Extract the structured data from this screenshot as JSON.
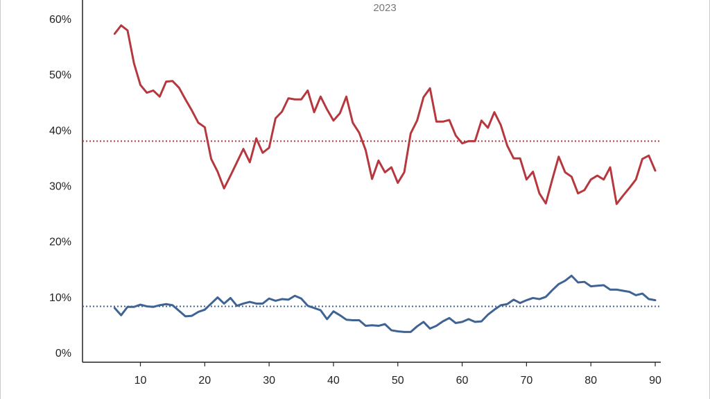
{
  "chart_data": {
    "type": "line",
    "subtitle": "2023",
    "x_ticks": [
      10,
      20,
      30,
      40,
      50,
      60,
      70,
      80,
      90
    ],
    "y_ticks": [
      "0%",
      "10%",
      "20%",
      "30%",
      "40%",
      "50%",
      "60%"
    ],
    "xlim": [
      0,
      91
    ],
    "ylim": [
      0,
      60
    ],
    "x": [
      6,
      7,
      8,
      9,
      10,
      11,
      12,
      13,
      14,
      15,
      16,
      17,
      18,
      19,
      20,
      21,
      22,
      23,
      24,
      25,
      26,
      27,
      28,
      29,
      30,
      31,
      32,
      33,
      34,
      35,
      36,
      37,
      38,
      39,
      40,
      41,
      42,
      43,
      44,
      45,
      46,
      47,
      48,
      49,
      50,
      51,
      52,
      53,
      54,
      55,
      56,
      57,
      58,
      59,
      60,
      61,
      62,
      63,
      64,
      65,
      66,
      67,
      68,
      69,
      70,
      71,
      72,
      73,
      74,
      75,
      76,
      77,
      78,
      79,
      80,
      81,
      82,
      83,
      84,
      85,
      86,
      87,
      88,
      89,
      90
    ],
    "series": [
      {
        "color": "#b5383e",
        "values": [
          57.3,
          58.8,
          57.9,
          52.0,
          48.1,
          46.7,
          47.1,
          46.0,
          48.7,
          48.8,
          47.6,
          45.5,
          43.5,
          41.3,
          40.5,
          34.8,
          32.5,
          29.5,
          31.8,
          34.2,
          36.6,
          34.2,
          38.5,
          35.9,
          36.8,
          42.1,
          43.3,
          45.7,
          45.5,
          45.5,
          47.1,
          43.2,
          46.0,
          43.7,
          41.7,
          43.0,
          46.0,
          41.3,
          39.5,
          36.4,
          31.2,
          34.5,
          32.4,
          33.3,
          30.5,
          32.4,
          39.4,
          41.7,
          45.9,
          47.5,
          41.5,
          41.5,
          41.8,
          39.0,
          37.6,
          38.0,
          38.0,
          41.7,
          40.4,
          43.2,
          40.9,
          37.2,
          34.9,
          34.9,
          31.1,
          32.5,
          28.6,
          26.8,
          31.1,
          35.2,
          32.4,
          31.6,
          28.6,
          29.2,
          31.1,
          31.8,
          31.1,
          33.3,
          26.7,
          28.2,
          29.6,
          31.1,
          34.8,
          35.4,
          32.7
        ]
      },
      {
        "color": "#3f6393",
        "values": [
          8.0,
          6.7,
          8.2,
          8.2,
          8.6,
          8.3,
          8.2,
          8.5,
          8.7,
          8.5,
          7.5,
          6.5,
          6.6,
          7.3,
          7.7,
          8.8,
          9.9,
          8.8,
          9.8,
          8.4,
          8.8,
          9.1,
          8.8,
          8.8,
          9.7,
          9.3,
          9.6,
          9.5,
          10.2,
          9.7,
          8.4,
          8.0,
          7.6,
          6.0,
          7.4,
          6.7,
          5.9,
          5.8,
          5.8,
          4.8,
          4.9,
          4.8,
          5.1,
          4.0,
          3.8,
          3.7,
          3.7,
          4.7,
          5.5,
          4.3,
          4.8,
          5.6,
          6.2,
          5.3,
          5.5,
          6.0,
          5.5,
          5.6,
          6.8,
          7.7,
          8.5,
          8.7,
          9.5,
          8.9,
          9.4,
          9.8,
          9.6,
          10.0,
          11.2,
          12.3,
          12.9,
          13.8,
          12.6,
          12.7,
          11.9,
          12.0,
          12.1,
          11.3,
          11.3,
          11.1,
          10.9,
          10.3,
          10.6,
          9.6,
          9.4
        ]
      }
    ],
    "reference_lines": [
      {
        "color": "#b5383e",
        "y": 38.0,
        "style": "dotted"
      },
      {
        "color": "#3f6393",
        "y": 8.3,
        "style": "dotted"
      }
    ]
  }
}
